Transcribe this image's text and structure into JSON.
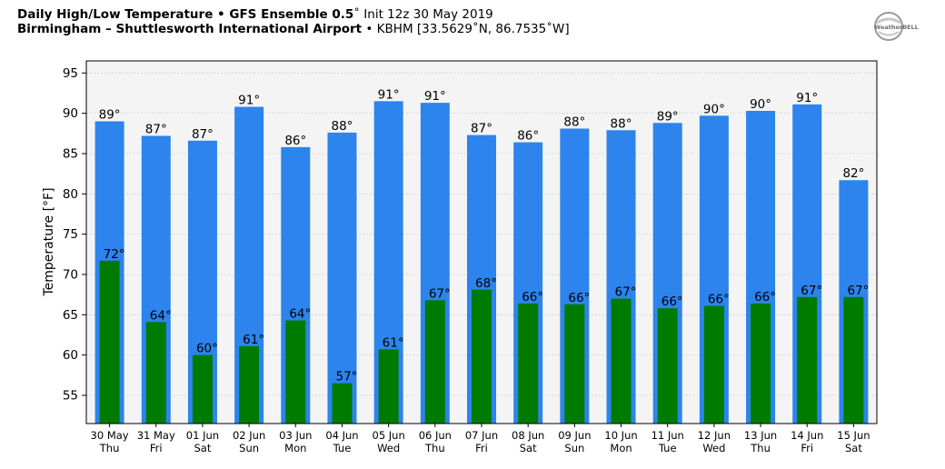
{
  "header": {
    "line1_bold": "Daily High/Low Temperature • GFS Ensemble 0.5",
    "line1_rest": "˚ Init 12z 30 May 2019",
    "line2_bold": "Birmingham – Shuttlesworth International Airport",
    "line2_rest": " • KBHM [33.5629˚N, 86.7535˚W]"
  },
  "logo": {
    "text": "WeatherBELL"
  },
  "chart_data": {
    "type": "bar",
    "title": "Daily High/Low Temperature • GFS Ensemble 0.5˚ Init 12z 30 May 2019",
    "ylabel": "Temperature [°F]",
    "ylim": [
      51.5,
      96.5
    ],
    "yticks": [
      55,
      60,
      65,
      70,
      75,
      80,
      85,
      90,
      95
    ],
    "grid": true,
    "categories": [
      [
        "30 May",
        "Thu"
      ],
      [
        "31 May",
        "Fri"
      ],
      [
        "01 Jun",
        "Sat"
      ],
      [
        "02 Jun",
        "Sun"
      ],
      [
        "03 Jun",
        "Mon"
      ],
      [
        "04 Jun",
        "Tue"
      ],
      [
        "05 Jun",
        "Wed"
      ],
      [
        "06 Jun",
        "Thu"
      ],
      [
        "07 Jun",
        "Fri"
      ],
      [
        "08 Jun",
        "Sat"
      ],
      [
        "09 Jun",
        "Sun"
      ],
      [
        "10 Jun",
        "Mon"
      ],
      [
        "11 Jun",
        "Tue"
      ],
      [
        "12 Jun",
        "Wed"
      ],
      [
        "13 Jun",
        "Thu"
      ],
      [
        "14 Jun",
        "Fri"
      ],
      [
        "15 Jun",
        "Sat"
      ]
    ],
    "series": [
      {
        "values": [
          89.0,
          87.2,
          86.6,
          90.8,
          85.8,
          87.6,
          91.5,
          91.3,
          87.3,
          86.4,
          88.1,
          87.9,
          88.8,
          89.7,
          90.3,
          91.1,
          81.7
        ],
        "labels": [
          "89°",
          "87°",
          "87°",
          "91°",
          "86°",
          "88°",
          "91°",
          "91°",
          "87°",
          "86°",
          "88°",
          "88°",
          "89°",
          "90°",
          "90°",
          "91°",
          "82°"
        ],
        "color": "#2c84ec"
      },
      {
        "values": [
          71.7,
          64.1,
          60.0,
          61.1,
          64.3,
          56.5,
          60.7,
          66.8,
          68.1,
          66.4,
          66.3,
          67.0,
          65.8,
          66.1,
          66.4,
          67.2,
          67.2
        ],
        "labels": [
          "72°",
          "64°",
          "60°",
          "61°",
          "64°",
          "57°",
          "61°",
          "67°",
          "68°",
          "66°",
          "66°",
          "67°",
          "66°",
          "66°",
          "66°",
          "67°",
          "67°"
        ],
        "color": "#007b00"
      }
    ]
  }
}
